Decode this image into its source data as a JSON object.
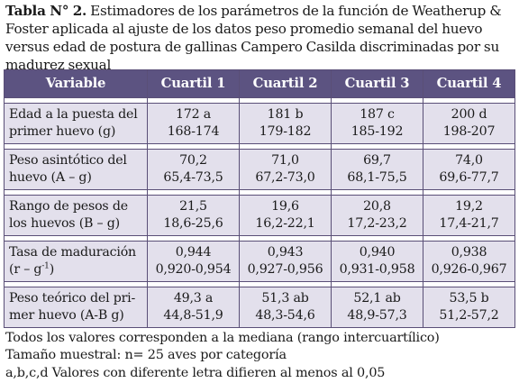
{
  "caption": {
    "label": "Tabla N° 2.",
    "text": " Estimadores de los parámetros de la función de Weatherup & Foster aplicada al ajuste de los datos peso promedio semanal del huevo versus edad de postura de gallinas Campero Casilda discriminadas por su madurez sexual"
  },
  "table": {
    "headers": [
      "Variable",
      "Cuartil 1",
      "Cuartil 2",
      "Cuartil 3",
      "Cuartil 4"
    ],
    "rows": [
      {
        "variable": [
          "Edad a la puesta del",
          "primer huevo (g)"
        ],
        "cells": [
          [
            "172 a",
            "168-174"
          ],
          [
            "181 b",
            "179-182"
          ],
          [
            "187 c",
            "185-192"
          ],
          [
            "200 d",
            "198-207"
          ]
        ]
      },
      {
        "variable": [
          "Peso asintótico del",
          "huevo (A – g)"
        ],
        "cells": [
          [
            "70,2",
            "65,4-73,5"
          ],
          [
            "71,0",
            "67,2-73,0"
          ],
          [
            "69,7",
            "68,1-75,5"
          ],
          [
            "74,0",
            "69,6-77,7"
          ]
        ]
      },
      {
        "variable": [
          "Rango de pesos de",
          "los huevos (B – g)"
        ],
        "cells": [
          [
            "21,5",
            "18,6-25,6"
          ],
          [
            "19,6",
            "16,2-22,1"
          ],
          [
            "20,8",
            "17,2-23,2"
          ],
          [
            "19,2",
            "17,4-21,7"
          ]
        ]
      },
      {
        "variable": [
          "Tasa de maduración",
          "(r – g"
        ],
        "variable_sup": "-1",
        "variable_tail": ")",
        "cells": [
          [
            "0,944",
            "0,920-0,954"
          ],
          [
            "0,943",
            "0,927-0,956"
          ],
          [
            "0,940",
            "0,931-0,958"
          ],
          [
            "0,938",
            "0,926-0,967"
          ]
        ]
      },
      {
        "variable": [
          "Peso teórico del pri-",
          "mer huevo (A-B g)"
        ],
        "cells": [
          [
            "49,3 a",
            "44,8-51,9"
          ],
          [
            "51,3 ab",
            "48,3-54,6"
          ],
          [
            "52,1 ab",
            "48,9-57,3"
          ],
          [
            "53,5 b",
            "51,2-57,2"
          ]
        ]
      }
    ]
  },
  "footnotes": [
    "Todos los valores corresponden a la mediana (rango intercuartílico)",
    "Tamaño muestral: n= 25 aves por categoría",
    "a,b,c,d Valores con diferente letra difieren al menos al 0,05"
  ],
  "colors": {
    "header_bg": "#5c5381",
    "row_bg": "#e3e0ec",
    "border": "#5a4f77"
  }
}
